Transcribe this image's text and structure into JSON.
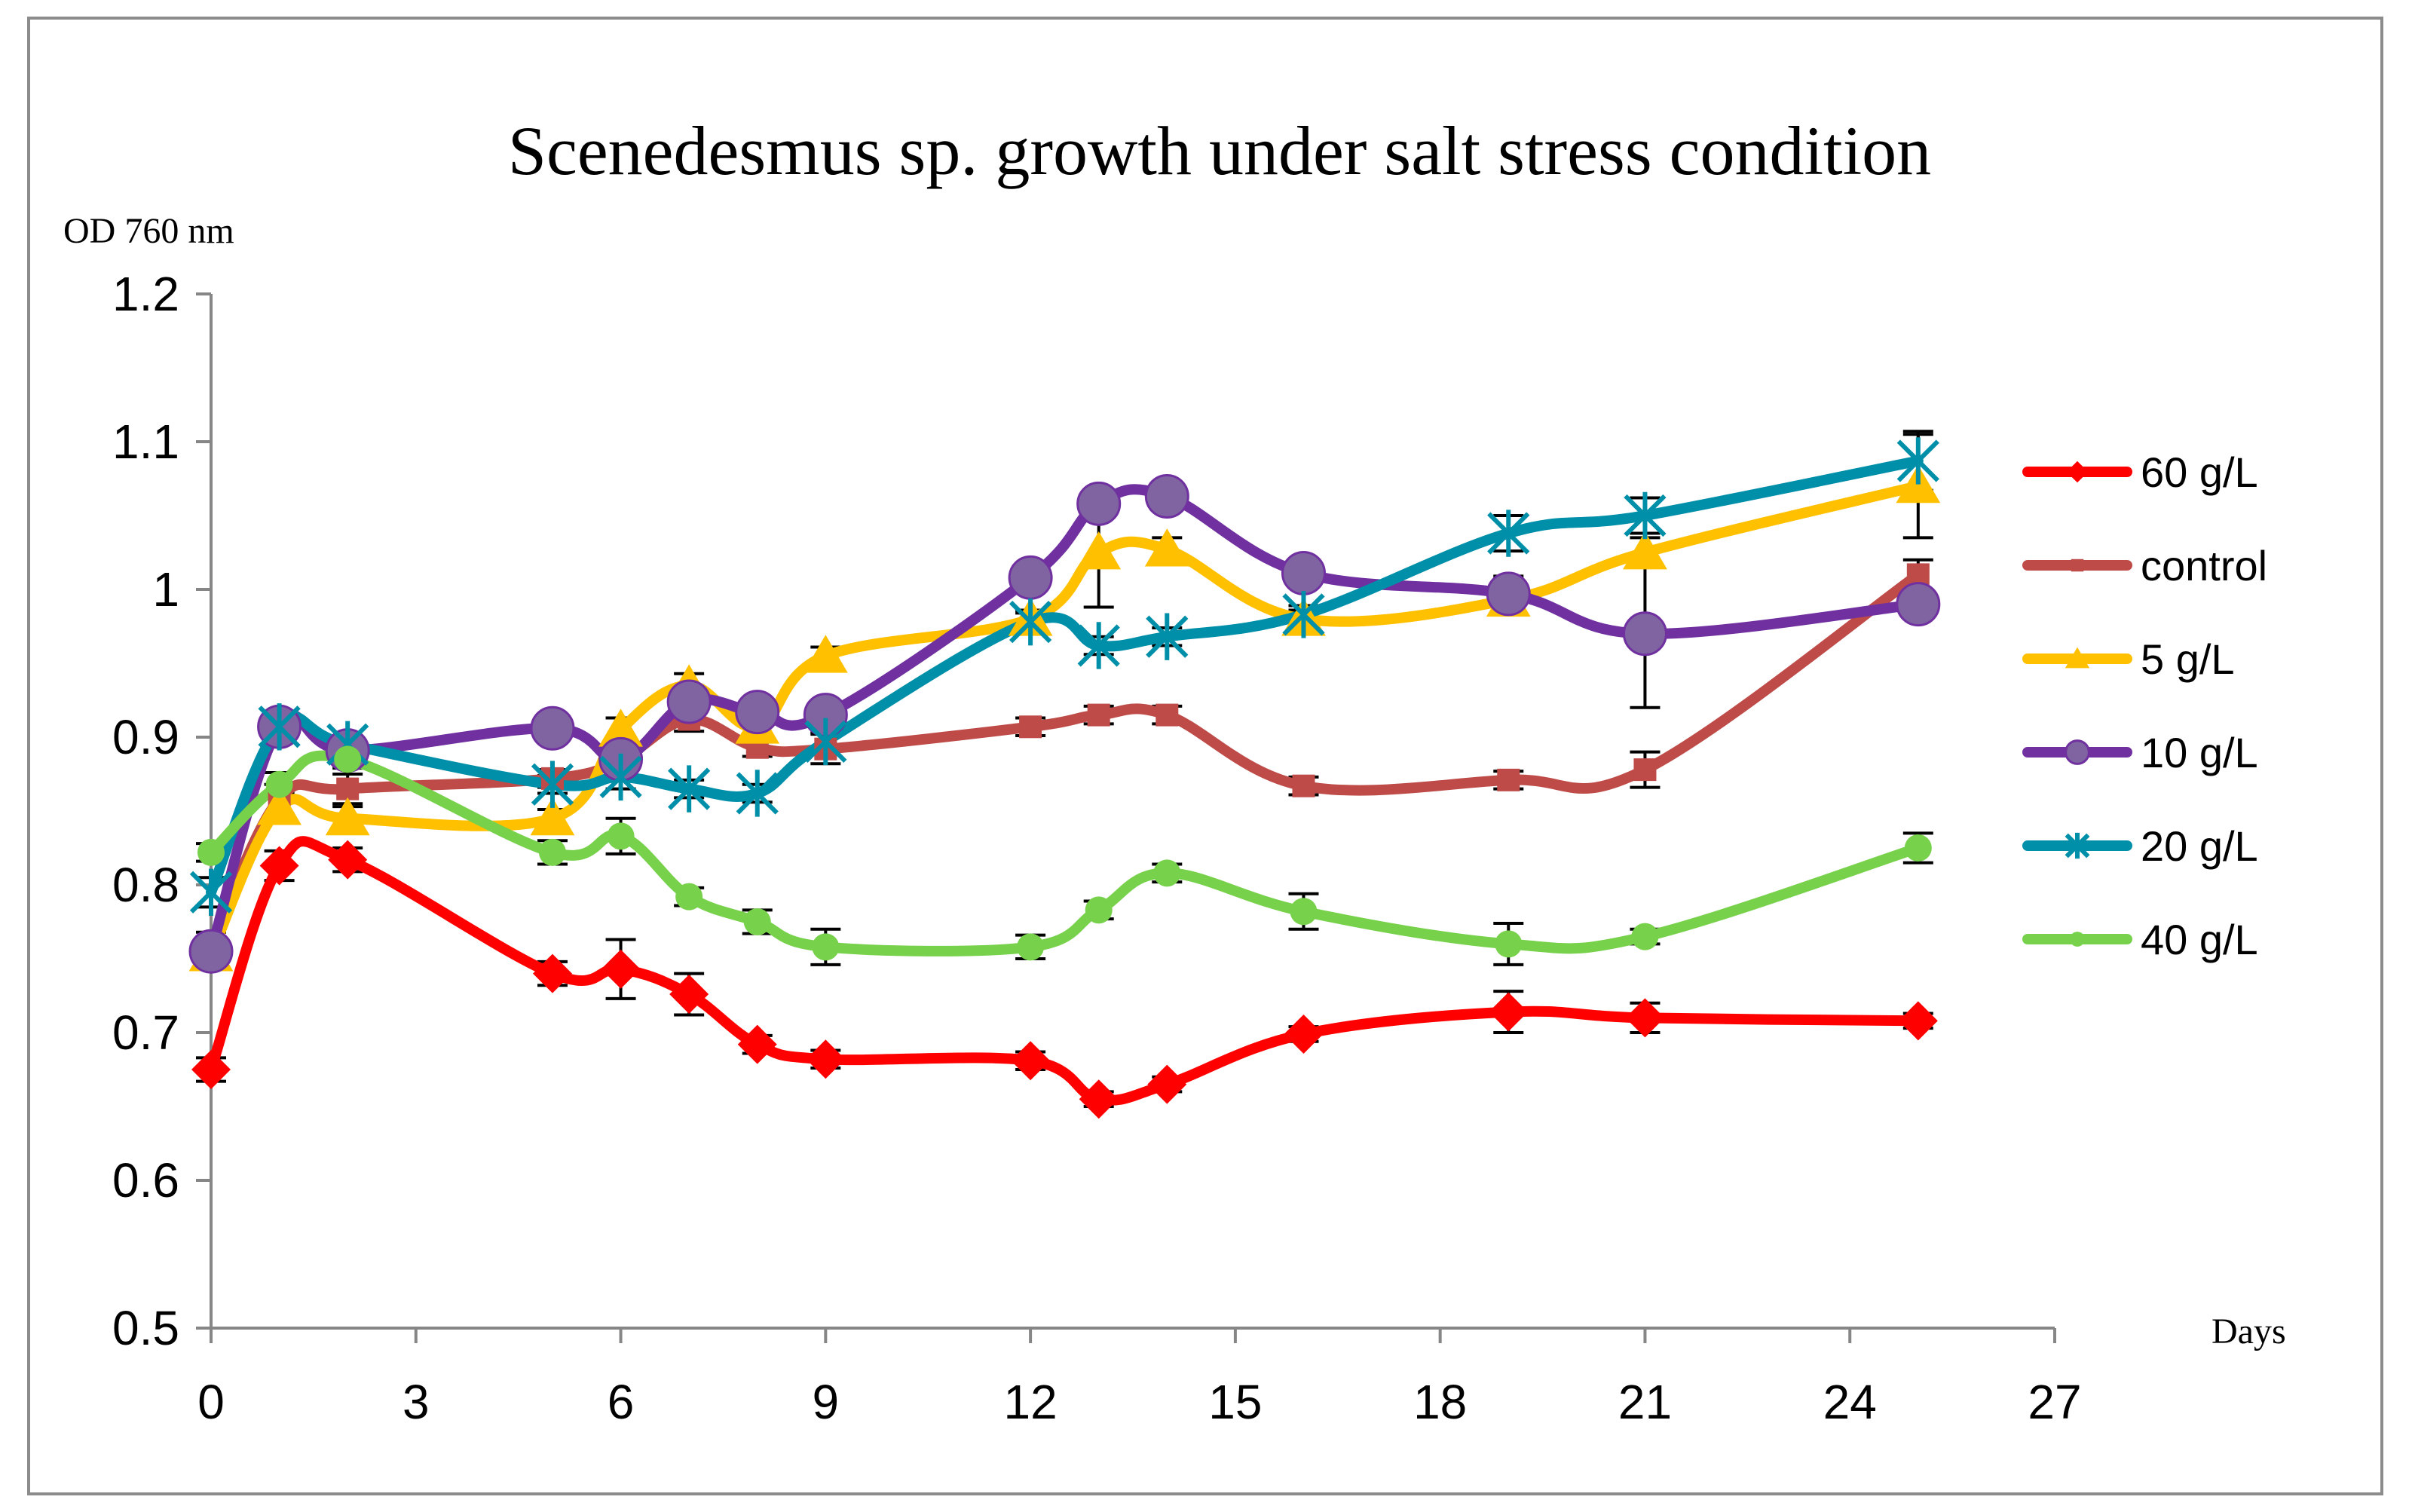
{
  "chart_data": {
    "type": "line",
    "title": "Scenedesmus sp.  growth  under salt stress condition",
    "ylabel": "OD 760 nm",
    "xlabel": "Days",
    "xlim": [
      0,
      27
    ],
    "ylim": [
      0.5,
      1.2
    ],
    "xticks": [
      0,
      3,
      6,
      9,
      12,
      15,
      18,
      21,
      24,
      27
    ],
    "yticks": [
      0.5,
      0.6,
      0.7,
      0.8,
      0.9,
      1.0,
      1.1,
      1.2
    ],
    "ytick_labels": [
      "0.5",
      "0.6",
      "0.7",
      "0.8",
      "0.9",
      "1",
      "1.1",
      "1.2"
    ],
    "grid": false,
    "legend_position": "right",
    "series": [
      {
        "name": "60 g/L",
        "color": "#ff0000",
        "marker": "diamond",
        "x": [
          0,
          1,
          2,
          5,
          6,
          7,
          8,
          9,
          12,
          13,
          14,
          16,
          19,
          21,
          25
        ],
        "y": [
          0.675,
          0.813,
          0.817,
          0.74,
          0.743,
          0.726,
          0.692,
          0.682,
          0.681,
          0.655,
          0.665,
          0.699,
          0.714,
          0.71,
          0.708
        ],
        "err": [
          0.008,
          0.01,
          0.008,
          0.008,
          0.02,
          0.014,
          0.006,
          0.006,
          0.006,
          0.005,
          0.005,
          0.005,
          0.014,
          0.01,
          0.005
        ]
      },
      {
        "name": "control",
        "color": "#be4b48",
        "marker": "square",
        "x": [
          0,
          1,
          2,
          5,
          6,
          7,
          8,
          9,
          12,
          13,
          14,
          16,
          19,
          21,
          25
        ],
        "y": [
          0.76,
          0.858,
          0.865,
          0.872,
          0.885,
          0.912,
          0.893,
          0.892,
          0.907,
          0.915,
          0.915,
          0.867,
          0.871,
          0.878,
          1.01
        ],
        "err": [
          0.008,
          0.01,
          0.01,
          0.006,
          0.006,
          0.008,
          0.006,
          0.01,
          0.006,
          0.006,
          0.006,
          0.006,
          0.006,
          0.012,
          0.01
        ]
      },
      {
        "name": "5 g/L",
        "color": "#ffc000",
        "marker": "triangle",
        "x": [
          0,
          1,
          2,
          5,
          6,
          7,
          8,
          9,
          12,
          13,
          14,
          16,
          19,
          21,
          25
        ],
        "y": [
          0.753,
          0.852,
          0.845,
          0.845,
          0.905,
          0.935,
          0.907,
          0.955,
          0.98,
          1.025,
          1.027,
          0.98,
          0.993,
          1.025,
          1.07
        ],
        "err": [
          0.008,
          0.01,
          0.008,
          0.006,
          0.008,
          0.008,
          0.008,
          0.006,
          0.006,
          0.037,
          0.008,
          0.006,
          0.006,
          0.01,
          0.035
        ]
      },
      {
        "name": "10 g/L",
        "color": "#7030a0",
        "marker": "circle",
        "x": [
          0,
          1,
          2,
          5,
          6,
          7,
          8,
          9,
          12,
          13,
          14,
          16,
          19,
          21,
          25
        ],
        "y": [
          0.755,
          0.907,
          0.891,
          0.906,
          0.885,
          0.924,
          0.917,
          0.915,
          1.008,
          1.058,
          1.063,
          1.011,
          0.997,
          0.97,
          0.99
        ],
        "err": [
          0.006,
          0.006,
          0.006,
          0.006,
          0.006,
          0.006,
          0.006,
          0.006,
          0.006,
          0.006,
          0.006,
          0.006,
          0.012,
          0.05,
          0.006
        ]
      },
      {
        "name": "20 g/L",
        "color": "#008fa8",
        "marker": "star",
        "x": [
          0,
          1,
          2,
          5,
          6,
          7,
          8,
          9,
          12,
          13,
          14,
          16,
          19,
          21,
          25
        ],
        "y": [
          0.795,
          0.907,
          0.895,
          0.868,
          0.873,
          0.865,
          0.862,
          0.897,
          0.978,
          0.962,
          0.968,
          0.983,
          1.038,
          1.05,
          1.087
        ],
        "err": [
          0.01,
          0.008,
          0.006,
          0.006,
          0.008,
          0.006,
          0.006,
          0.006,
          0.006,
          0.006,
          0.006,
          0.006,
          0.012,
          0.012,
          0.02
        ]
      },
      {
        "name": "40 g/L",
        "color": "#77d14b",
        "marker": "circle-small",
        "x": [
          0,
          1,
          2,
          5,
          6,
          7,
          8,
          9,
          12,
          13,
          14,
          16,
          19,
          21,
          25
        ],
        "y": [
          0.822,
          0.868,
          0.885,
          0.822,
          0.833,
          0.792,
          0.775,
          0.758,
          0.758,
          0.783,
          0.808,
          0.782,
          0.76,
          0.765,
          0.825
        ],
        "err": [
          0.006,
          0.008,
          0.006,
          0.008,
          0.012,
          0.006,
          0.008,
          0.012,
          0.008,
          0.006,
          0.006,
          0.012,
          0.014,
          0.005,
          0.01
        ]
      }
    ]
  }
}
